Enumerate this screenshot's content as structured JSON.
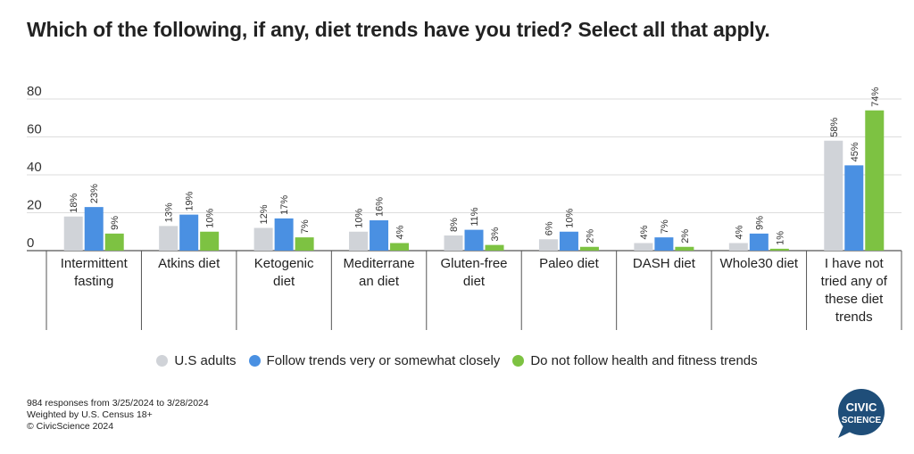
{
  "title": "Which of the following, if any, diet trends have you tried? Select all that apply.",
  "footnote": {
    "line1": "984 responses from 3/25/2024 to 3/28/2024",
    "line2": "Weighted by U.S. Census 18+",
    "line3": "© CivicScience 2024"
  },
  "logo": {
    "line1": "CIVIC",
    "line2": "SCIENCE",
    "color": "#1f4e79"
  },
  "chart_data": {
    "type": "bar",
    "title": "Which of the following, if any, diet trends have you tried? Select all that apply.",
    "xlabel": "",
    "ylabel": "",
    "ylim": [
      0,
      80
    ],
    "yticks": [
      0,
      20,
      40,
      60,
      80
    ],
    "grid": true,
    "legend_position": "bottom",
    "categories": [
      [
        "Intermittent",
        "fasting"
      ],
      [
        "Atkins diet"
      ],
      [
        "Ketogenic",
        "diet"
      ],
      [
        "Mediterrane",
        "an diet"
      ],
      [
        "Gluten-free",
        "diet"
      ],
      [
        "Paleo diet"
      ],
      [
        "DASH diet"
      ],
      [
        "Whole30 diet"
      ],
      [
        "I have not",
        "tried any of",
        "these diet",
        "trends"
      ]
    ],
    "series": [
      {
        "name": "U.S adults",
        "color": "#d0d3d8",
        "values": [
          18,
          13,
          12,
          10,
          8,
          6,
          4,
          4,
          58
        ]
      },
      {
        "name": "Follow trends very or somewhat closely",
        "color": "#4a90e2",
        "values": [
          23,
          19,
          17,
          16,
          11,
          10,
          7,
          9,
          45
        ]
      },
      {
        "name": "Do not follow health and fitness trends",
        "color": "#7dc242",
        "values": [
          9,
          10,
          7,
          4,
          3,
          2,
          2,
          1,
          74
        ]
      }
    ]
  }
}
